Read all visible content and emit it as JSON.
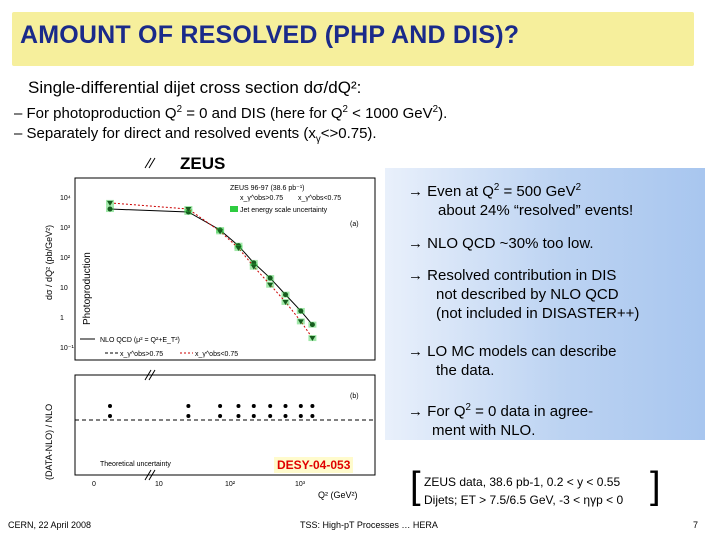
{
  "slide": {
    "title": "AMOUNT OF RESOLVED (PHP AND DIS)?",
    "intro": "Single-differential dijet cross section dσ/dQ²:",
    "bullet1_a": "– For photoproduction Q",
    "bullet1_b": " = 0 and DIS (here for Q",
    "bullet1_c": " < 1000 GeV",
    "bullet1_d": ").",
    "bullet2_a": "– Separately for direct and resolved events (x",
    "bullet2_b": "<>0.75).",
    "sup2": "2",
    "sub_gamma": "γ"
  },
  "plot": {
    "experiment_label": "ZEUS",
    "panel_a_legend": [
      "ZEUS 96-97 (38.6 pb⁻¹)",
      "x_γ^obs>0.75",
      "x_γ^obs<0.75",
      "Jet energy scale uncertainty",
      "(a)"
    ],
    "panel_b_legend": [
      "NLO QCD (μ² = Q²+E_T²)",
      "x_γ^obs>0.75",
      "x_γ^obs<0.75",
      "(b)",
      "Theoretical uncertainty"
    ],
    "y_label_top": "dσ / dQ² (pb/GeV²)",
    "y_label_photoproduction": "Photoproduction",
    "y_label_bottom": "(DATA-NLO) / NLO",
    "x_label": "Q² (GeV²)",
    "desy": "DESY-04-053"
  },
  "notes": [
    {
      "a": "→ Even at Q",
      "b": " = 500 GeV",
      "c": "",
      "line2": "about 24% “resolved” events!"
    },
    {
      "a": "→ NLO QCD ~30% too low."
    },
    {
      "a": "→ Resolved contribution in DIS",
      "line2": "not described by NLO QCD",
      "line3": "(not included in DISASTER++)"
    },
    {
      "a": "→ LO MC models can describe",
      "line2": "the data."
    },
    {
      "a": "→ For Q",
      "b": " = 0 data in agree-",
      "line2": "ment with NLO."
    }
  ],
  "info": {
    "line1": "ZEUS data, 38.6 pb-1, 0.2 < y < 0.55",
    "line2": "Dijets; ET > 7.5/6.5 GeV, -3 < ηγp < 0"
  },
  "footer": {
    "left": "CERN, 22 April 2008",
    "mid": "TSS: High-pT Processes … HERA",
    "right": "7"
  },
  "chart_data": {
    "type": "scatter",
    "title": "ZEUS",
    "xlabel": "Q² (GeV²)",
    "ylabel": "dσ / dQ² (pb/GeV²)",
    "x_scale": "log",
    "y_scale": "log",
    "series": [
      {
        "name": "x_γ^obs>0.75",
        "x": [
          0,
          0.3,
          2,
          6,
          15,
          40,
          100,
          250,
          500
        ],
        "values": [
          5000,
          4000,
          1000,
          300,
          80,
          25,
          7,
          2,
          0.7
        ]
      },
      {
        "name": "x_γ^obs<0.75",
        "x": [
          0,
          0.3,
          2,
          6,
          15,
          40,
          100,
          250,
          500
        ],
        "values": [
          8000,
          5000,
          900,
          250,
          60,
          15,
          4,
          0.9,
          0.25
        ]
      }
    ]
  }
}
